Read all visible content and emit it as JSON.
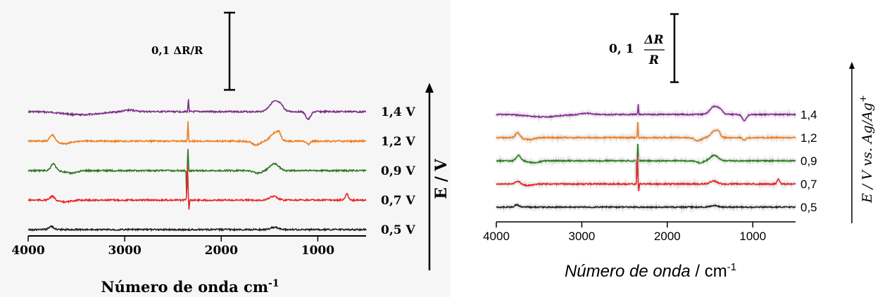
{
  "chart_data": [
    {
      "type": "line",
      "title": "",
      "xlabel": "Número de onda cm",
      "xlabel_sup": "-1",
      "ylabel": "E / V",
      "xlim": [
        4000,
        500
      ],
      "x_ticks": [
        "4000",
        "3000",
        "2000",
        "1000"
      ],
      "x_tick_values": [
        4000,
        3000,
        2000,
        1000
      ],
      "scale_bar_label": "0,1  ΔR/R",
      "series": [
        {
          "name": "1,4 V",
          "color": "#7b2f86",
          "baseline_offset": 4
        },
        {
          "name": "1,2 V",
          "color": "#f07f1e",
          "baseline_offset": 3
        },
        {
          "name": "0,9 V",
          "color": "#2d7a1e",
          "baseline_offset": 2
        },
        {
          "name": "0,7 V",
          "color": "#e8262a",
          "baseline_offset": 1
        },
        {
          "name": "0,5 V",
          "color": "#222222",
          "baseline_offset": 0
        }
      ]
    },
    {
      "type": "line",
      "title": "",
      "xlabel_italic": "Número de onda",
      "xlabel_unit": " / cm",
      "xlabel_sup": "-1",
      "ylabel": "E / V vs. Ag/Ag",
      "ylabel_sup": "+",
      "xlim": [
        4000,
        500
      ],
      "x_ticks": [
        "4000",
        "3000",
        "2000",
        "1000"
      ],
      "x_tick_values": [
        4000,
        3000,
        2000,
        1000
      ],
      "scale_bar_value": "0, 1",
      "scale_bar_num": "ΔR",
      "scale_bar_den": "R",
      "series": [
        {
          "name": "1,4",
          "color": "#8a2b98",
          "baseline_offset": 4
        },
        {
          "name": "1,2",
          "color": "#ef7d1f",
          "baseline_offset": 3
        },
        {
          "name": "0,9",
          "color": "#2a7d1d",
          "baseline_offset": 2
        },
        {
          "name": "0,7",
          "color": "#e52225",
          "baseline_offset": 1
        },
        {
          "name": "0,5",
          "color": "#222222",
          "baseline_offset": 0
        }
      ]
    }
  ]
}
